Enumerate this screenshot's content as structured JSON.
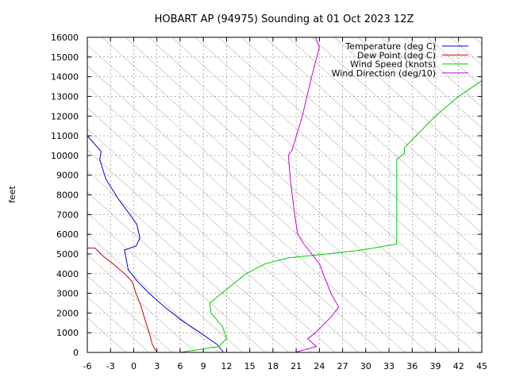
{
  "chart_data": {
    "type": "line",
    "title": "HOBART AP (94975) Sounding at 01 Oct 2023 12Z",
    "xlabel": "",
    "ylabel": "feet",
    "xlim": [
      -6,
      45
    ],
    "ylim": [
      0,
      16000
    ],
    "x_ticks": [
      -6,
      -3,
      0,
      3,
      6,
      9,
      12,
      15,
      18,
      21,
      24,
      27,
      30,
      33,
      36,
      39,
      42,
      45
    ],
    "y_ticks": [
      0,
      1000,
      2000,
      3000,
      4000,
      5000,
      6000,
      7000,
      8000,
      9000,
      10000,
      11000,
      12000,
      13000,
      14000,
      15000,
      16000
    ],
    "grid": true,
    "legend_position": "top-right",
    "series": [
      {
        "name": "Temperature (deg C)",
        "color": "#0000cc",
        "x": [
          11.6,
          10.8,
          8.6,
          6.3,
          4.0,
          2.0,
          0.5,
          -0.7,
          -1.2,
          0.3,
          0.8,
          0.4,
          -0.5,
          -2.0,
          -3.6,
          -4.4,
          -4.2,
          -6.0
        ],
        "y": [
          0,
          400,
          1000,
          1600,
          2300,
          3000,
          3600,
          4200,
          5200,
          5400,
          5800,
          6500,
          7000,
          7800,
          8800,
          9800,
          10200,
          11000
        ]
      },
      {
        "name": "Dew Point (deg C)",
        "color": "#cc0000",
        "x": [
          3.0,
          2.4,
          2.0,
          1.5,
          0.9,
          0.3,
          -0.2,
          -1.2,
          -2.7,
          -4.0,
          -5.0,
          -6.0
        ],
        "y": [
          0,
          400,
          1000,
          1600,
          2400,
          3000,
          3600,
          4000,
          4500,
          4900,
          5300,
          5300
        ]
      },
      {
        "name": "Wind Speed (knots)",
        "color": "#00cc00",
        "x": [
          6.0,
          11.0,
          12.0,
          11.5,
          10.0,
          9.8,
          12.0,
          14.5,
          17.0,
          20.0,
          25.0,
          29.5,
          34.0,
          34.0,
          35.0,
          35.0,
          36.0,
          39.0,
          42.0,
          45.0
        ],
        "y": [
          0,
          300,
          700,
          1300,
          2000,
          2500,
          3200,
          4000,
          4500,
          4800,
          5000,
          5200,
          5500,
          9800,
          10100,
          10400,
          10800,
          12000,
          13000,
          13800
        ]
      },
      {
        "name": "Wind Direction (deg/10)",
        "color": "#cc00cc",
        "x": [
          20.8,
          23.6,
          22.5,
          23.5,
          25.5,
          26.5,
          25.5,
          24.5,
          24.0,
          22.0,
          21.2,
          20.8,
          20.5,
          20.2,
          20.0,
          20.5,
          21.8,
          23.0,
          24.0,
          23.5
        ],
        "y": [
          0,
          300,
          700,
          1000,
          1800,
          2300,
          3000,
          4000,
          4500,
          5500,
          6000,
          7000,
          8000,
          9000,
          10000,
          10300,
          12000,
          14000,
          15500,
          16000
        ]
      }
    ]
  }
}
